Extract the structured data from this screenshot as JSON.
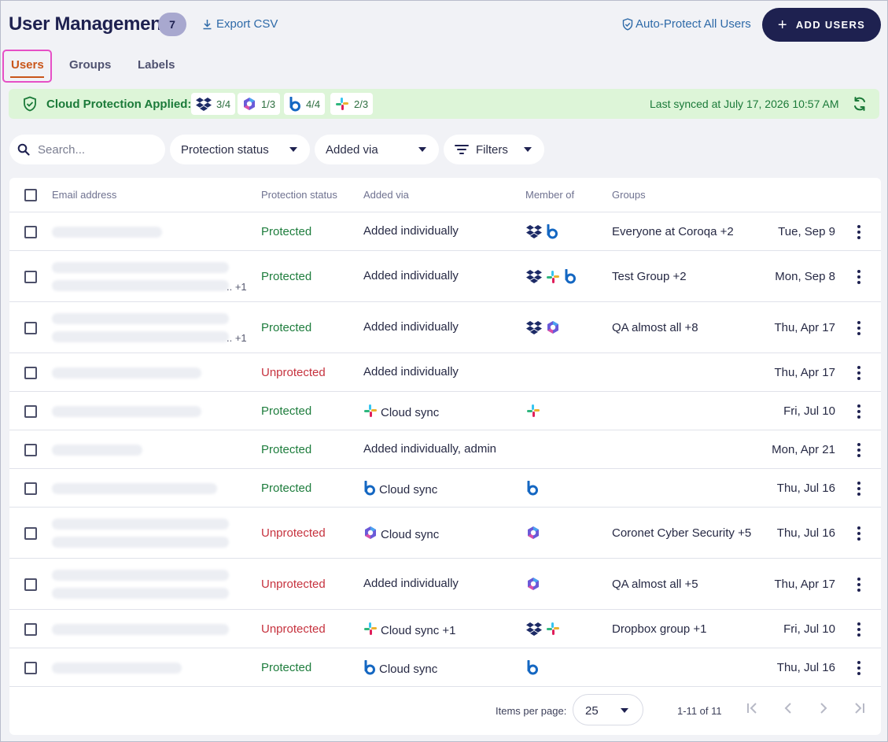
{
  "header": {
    "title": "User Management",
    "count": "7",
    "export_label": "Export CSV",
    "auto_protect_label": "Auto-Protect All Users",
    "add_users_label": "ADD USERS"
  },
  "tabs": [
    {
      "label": "Users",
      "active": true
    },
    {
      "label": "Groups",
      "active": false
    },
    {
      "label": "Labels",
      "active": false
    }
  ],
  "cloud_bar": {
    "label": "Cloud Protection Applied:",
    "chips": [
      {
        "icon": "dropbox-icon",
        "value": "3/4"
      },
      {
        "icon": "microsoft365-icon",
        "value": "1/3"
      },
      {
        "icon": "box-icon",
        "value": "4/4"
      },
      {
        "icon": "slack-icon",
        "value": "2/3"
      }
    ],
    "last_synced": "Last synced at July 17, 2026 10:57 AM",
    "bg_color": "#ddf5d8",
    "text_color": "#1b7a39"
  },
  "filters": {
    "search_placeholder": "Search...",
    "protection_status_label": "Protection status",
    "added_via_label": "Added via",
    "filters_label": "Filters"
  },
  "table": {
    "columns": [
      "Email address",
      "Protection status",
      "Added via",
      "Member of",
      "Groups"
    ],
    "rows": [
      {
        "email_lines": 1,
        "extra": "",
        "status": "Protected",
        "added_via": "Added individually",
        "via_icon": "",
        "member_of": [
          "dropbox-icon",
          "box-icon"
        ],
        "groups": "Everyone at Coroqa +2",
        "date": "Tue, Sep 9"
      },
      {
        "email_lines": 2,
        "extra": "+1",
        "status": "Protected",
        "added_via": "Added individually",
        "via_icon": "",
        "member_of": [
          "dropbox-icon",
          "slack-icon",
          "box-icon"
        ],
        "groups": "Test Group +2",
        "date": "Mon, Sep 8"
      },
      {
        "email_lines": 2,
        "extra": "+1",
        "status": "Protected",
        "added_via": "Added individually",
        "via_icon": "",
        "member_of": [
          "dropbox-icon",
          "microsoft365-icon"
        ],
        "groups": "QA almost all +8",
        "date": "Thu, Apr 17"
      },
      {
        "email_lines": 1,
        "extra": "",
        "status": "Unprotected",
        "added_via": "Added individually",
        "via_icon": "",
        "member_of": [],
        "groups": "",
        "date": "Thu, Apr 17"
      },
      {
        "email_lines": 1,
        "extra": "",
        "status": "Protected",
        "added_via": "Cloud sync",
        "via_icon": "slack-icon",
        "member_of": [
          "slack-icon"
        ],
        "groups": "",
        "date": "Fri, Jul 10"
      },
      {
        "email_lines": 1,
        "extra": "",
        "status": "Protected",
        "added_via": "Added individually, admin",
        "via_icon": "",
        "member_of": [],
        "groups": "",
        "date": "Mon, Apr 21"
      },
      {
        "email_lines": 1,
        "extra": "",
        "status": "Protected",
        "added_via": "Cloud sync",
        "via_icon": "box-icon",
        "member_of": [
          "box-icon"
        ],
        "groups": "",
        "date": "Thu, Jul 16"
      },
      {
        "email_lines": 2,
        "extra": "",
        "status": "Unprotected",
        "added_via": "Cloud sync",
        "via_icon": "microsoft365-icon",
        "member_of": [
          "microsoft365-icon"
        ],
        "groups": "Coronet Cyber Security +5",
        "date": "Thu, Jul 16"
      },
      {
        "email_lines": 2,
        "extra": "",
        "status": "Unprotected",
        "added_via": "Added individually",
        "via_icon": "",
        "member_of": [
          "microsoft365-icon"
        ],
        "groups": "QA almost all +5",
        "date": "Thu, Apr 17"
      },
      {
        "email_lines": 1,
        "extra": "",
        "status": "Unprotected",
        "added_via": "Cloud sync +1",
        "via_icon": "slack-icon",
        "member_of": [
          "dropbox-icon",
          "slack-icon"
        ],
        "groups": "Dropbox group +1",
        "date": "Fri, Jul 10"
      },
      {
        "email_lines": 1,
        "extra": "",
        "status": "Protected",
        "added_via": "Cloud sync",
        "via_icon": "box-icon",
        "member_of": [
          "box-icon"
        ],
        "groups": "",
        "date": "Thu, Jul 16"
      }
    ]
  },
  "pagination": {
    "items_per_page_label": "Items per page:",
    "items_per_page": "25",
    "range": "1-11 of 11"
  },
  "colors": {
    "brand": "#1e2150",
    "accent": "#c9561a",
    "link": "#2e6aa8",
    "protected": "#1e7d3d",
    "unprotected": "#c6323e"
  }
}
